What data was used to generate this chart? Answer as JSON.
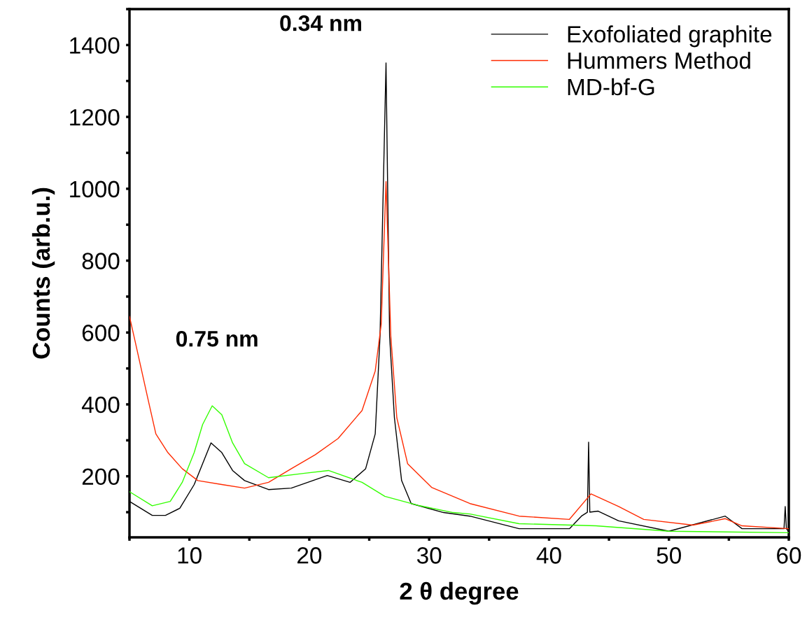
{
  "chart_data": {
    "type": "line",
    "xlabel": "2 θ degree",
    "ylabel": "Counts (arb.u.)",
    "xlim": [
      5,
      60
    ],
    "ylim": [
      30,
      1500
    ],
    "xticks": [
      {
        "value": 5,
        "label": null
      },
      10,
      {
        "value": 15,
        "label": null
      },
      20,
      {
        "value": 25,
        "label": null
      },
      30,
      {
        "value": 35,
        "label": null
      },
      40,
      {
        "value": 45,
        "label": null
      },
      50,
      {
        "value": 55,
        "label": null
      },
      60
    ],
    "yticks": [
      {
        "value": 100,
        "label": null
      },
      200,
      {
        "value": 300,
        "label": null
      },
      400,
      {
        "value": 500,
        "label": null
      },
      600,
      {
        "value": 700,
        "label": null
      },
      800,
      {
        "value": 900,
        "label": null
      },
      1000,
      {
        "value": 1100,
        "label": null
      },
      1200,
      {
        "value": 1300,
        "label": null
      },
      1400,
      {
        "value": 1500,
        "label": null
      }
    ],
    "grid": false,
    "legend": "top right",
    "marker": "none",
    "line_style": "solid",
    "annotations": [
      {
        "text": "0.75 nm",
        "x": 11.9,
        "y": 396
      },
      {
        "text": "0.34 nm",
        "x": 26.4,
        "y": 1350
      }
    ],
    "series": [
      {
        "name": "Exofoliated graphite",
        "color": "#000000",
        "x": [
          5,
          6.9,
          8.0,
          9.2,
          10.4,
          11.1,
          11.8,
          12.7,
          13.6,
          14.6,
          16.6,
          18.5,
          21.5,
          23.4,
          24.7,
          25.5,
          25.9,
          26.4,
          26.7,
          27.1,
          27.7,
          28.5,
          31.2,
          33.4,
          37.5,
          41.7,
          42.7,
          43.2,
          43.3,
          43.4,
          44.1,
          45.8,
          50,
          54.7,
          56.1,
          59.6,
          59.7,
          59.8,
          60
        ],
        "values": [
          130,
          91,
          91,
          111,
          177,
          235,
          293,
          266,
          216,
          188,
          163,
          167,
          202,
          183,
          221,
          318,
          590,
          1350,
          590,
          363,
          188,
          124,
          99,
          89,
          54,
          54,
          89,
          100,
          295,
          100,
          103,
          76,
          47,
          89,
          54,
          54,
          116,
          54,
          45
        ]
      },
      {
        "name": "Hummers Method",
        "color": "#ff2a00",
        "x": [
          5,
          5.5,
          6.5,
          7.2,
          8.2,
          9.4,
          10.7,
          12.7,
          14.6,
          16.6,
          18.5,
          20.5,
          22.4,
          24.4,
          25.5,
          26.0,
          26.4,
          26.8,
          27.3,
          28.2,
          30.2,
          33.4,
          37.5,
          41.7,
          43.5,
          45.8,
          47.9,
          52,
          54.7,
          56.1,
          60
        ],
        "values": [
          645,
          571,
          421,
          318,
          266,
          221,
          188,
          177,
          167,
          183,
          221,
          260,
          305,
          383,
          493,
          623,
          1020,
          590,
          363,
          235,
          169,
          124,
          89,
          80,
          151,
          116,
          80,
          64,
          82,
          62,
          54
        ]
      },
      {
        "name": "MD-bf-G",
        "color": "#33ff00",
        "x": [
          5,
          6.9,
          8.4,
          9.4,
          10.4,
          11.1,
          11.9,
          12.7,
          13.6,
          14.6,
          16.6,
          19.5,
          21.6,
          24.4,
          26.3,
          29.2,
          32,
          33.4,
          37.5,
          43.9,
          50,
          60
        ],
        "values": [
          157,
          118,
          130,
          183,
          266,
          344,
          396,
          371,
          293,
          235,
          196,
          208,
          216,
          183,
          144,
          118,
          99,
          95,
          68,
          62,
          47,
          43
        ]
      }
    ]
  }
}
